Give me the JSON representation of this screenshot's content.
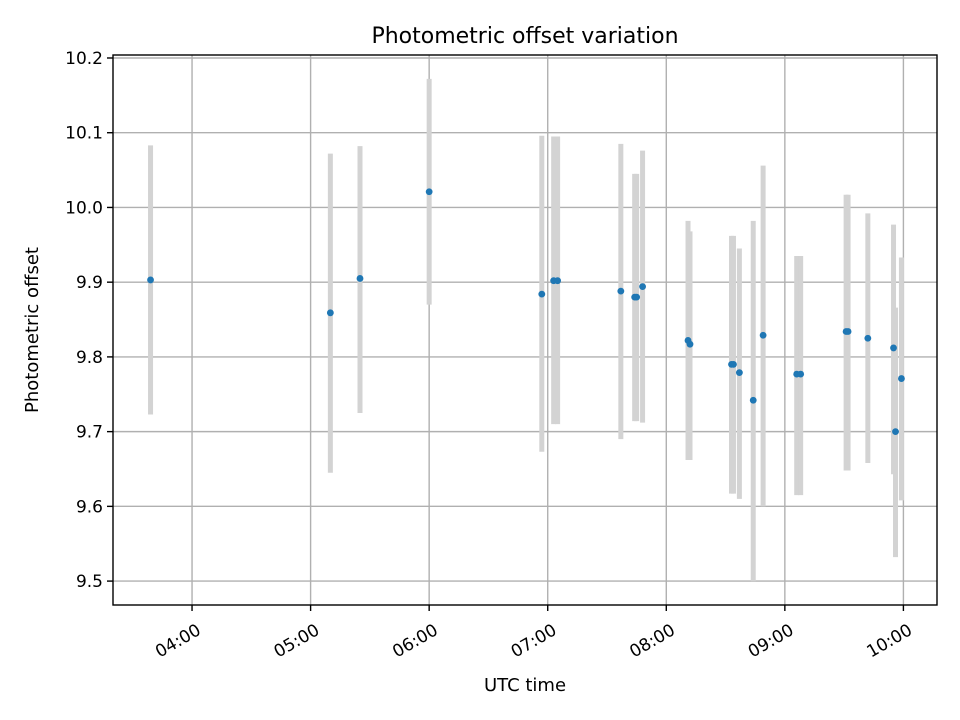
{
  "chart_data": {
    "type": "scatter",
    "title": "Photometric offset variation",
    "xlabel": "UTC time",
    "ylabel": "Photometric offset",
    "x_axis_kind": "time",
    "xlim": [
      "03:20",
      "10:17"
    ],
    "ylim": [
      9.468,
      10.204
    ],
    "xticks": [
      "04:00",
      "05:00",
      "06:00",
      "07:00",
      "08:00",
      "09:00",
      "10:00"
    ],
    "yticks": [
      "9.5",
      "9.6",
      "9.7",
      "9.8",
      "9.9",
      "10.0",
      "10.1",
      "10.2"
    ],
    "grid": true,
    "legend": "none",
    "colors": {
      "points": "#1f77b4",
      "error_bars": "#d3d3d3"
    },
    "series": [
      {
        "x": [
          "03:39",
          "05:10",
          "05:25",
          "06:00",
          "06:57",
          "07:03",
          "07:05",
          "07:37",
          "07:44",
          "07:45",
          "07:48",
          "08:11",
          "08:12",
          "08:33",
          "08:34",
          "08:37",
          "08:44",
          "08:49",
          "09:06",
          "09:08",
          "09:31",
          "09:32",
          "09:42",
          "09:55",
          "09:56",
          "09:59"
        ],
        "y": [
          9.903,
          9.859,
          9.905,
          10.021,
          9.884,
          9.902,
          9.902,
          9.888,
          9.88,
          9.88,
          9.894,
          9.822,
          9.817,
          9.79,
          9.79,
          9.779,
          9.742,
          9.829,
          9.777,
          9.777,
          9.834,
          9.834,
          9.825,
          9.812,
          9.7,
          9.771
        ],
        "yerr_low": [
          9.723,
          9.645,
          9.725,
          9.87,
          9.673,
          9.71,
          9.71,
          9.69,
          9.714,
          9.714,
          9.712,
          9.662,
          9.662,
          9.617,
          9.617,
          9.61,
          9.5,
          9.6,
          9.615,
          9.615,
          9.648,
          9.648,
          9.658,
          9.643,
          9.532,
          9.608
        ],
        "yerr_high": [
          10.083,
          10.072,
          10.082,
          10.172,
          10.096,
          10.095,
          10.095,
          10.085,
          10.045,
          10.045,
          10.076,
          9.982,
          9.968,
          9.962,
          9.962,
          9.945,
          9.982,
          10.056,
          9.935,
          9.935,
          10.017,
          10.017,
          9.992,
          9.977,
          9.866,
          9.933
        ]
      }
    ]
  }
}
